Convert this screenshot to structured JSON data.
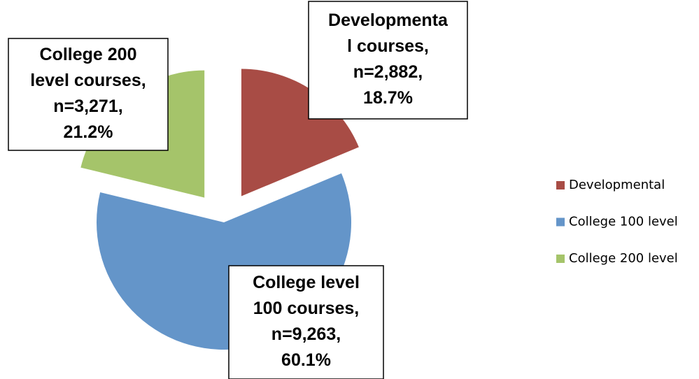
{
  "chart_data": {
    "type": "pie",
    "categories": [
      "Developmental",
      "College 100 level",
      "College 200 level"
    ],
    "values": [
      18.7,
      60.1,
      21.2
    ],
    "value_labels": [
      [
        "Developmenta",
        "l courses,",
        "n=2,882,",
        "18.7%"
      ],
      [
        "College level",
        "100 courses,",
        "n=9,263,",
        "60.1%"
      ],
      [
        "College 200",
        "level courses,",
        "n=3,271,",
        "21.2%"
      ]
    ],
    "colors": [
      "#a84c45",
      "#6495c9",
      "#a5c46a"
    ],
    "legend": "right"
  }
}
